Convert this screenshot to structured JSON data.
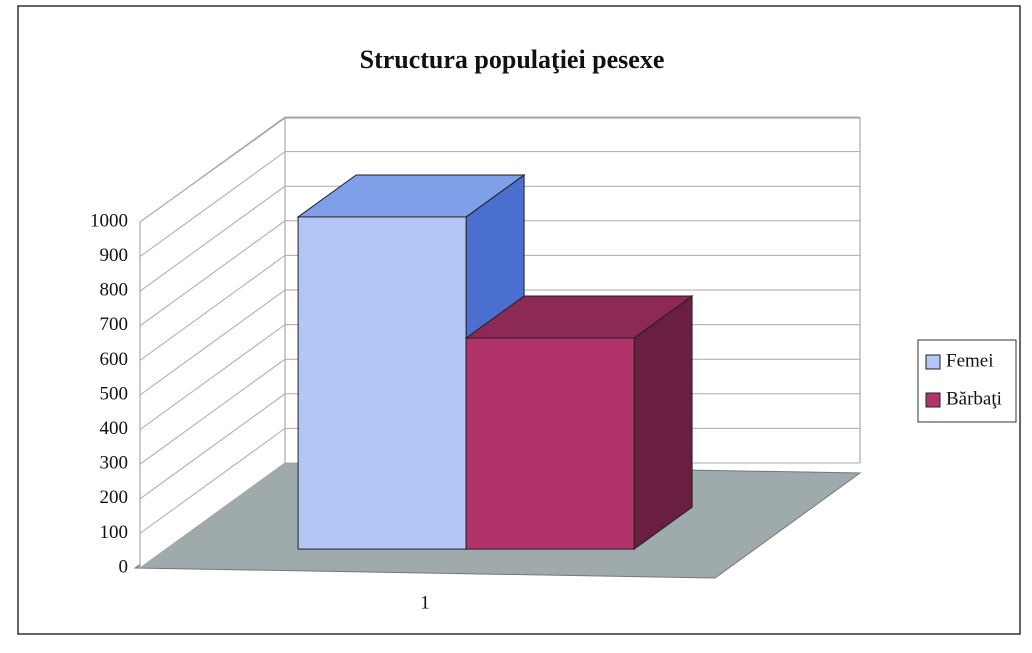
{
  "chart_data": {
    "type": "bar3d",
    "title": "Structura populaţiei pesexe",
    "categories": [
      "1"
    ],
    "series": [
      {
        "name": "Femei",
        "color": "#b3c6f5",
        "values": [
          960
        ]
      },
      {
        "name": "Bărbaţi",
        "color": "#b0336a",
        "values": [
          610
        ]
      }
    ],
    "ylim": [
      0,
      1000
    ],
    "yticks": [
      0,
      100,
      200,
      300,
      400,
      500,
      600,
      700,
      800,
      900,
      1000
    ],
    "grid": true,
    "legend": "right"
  }
}
